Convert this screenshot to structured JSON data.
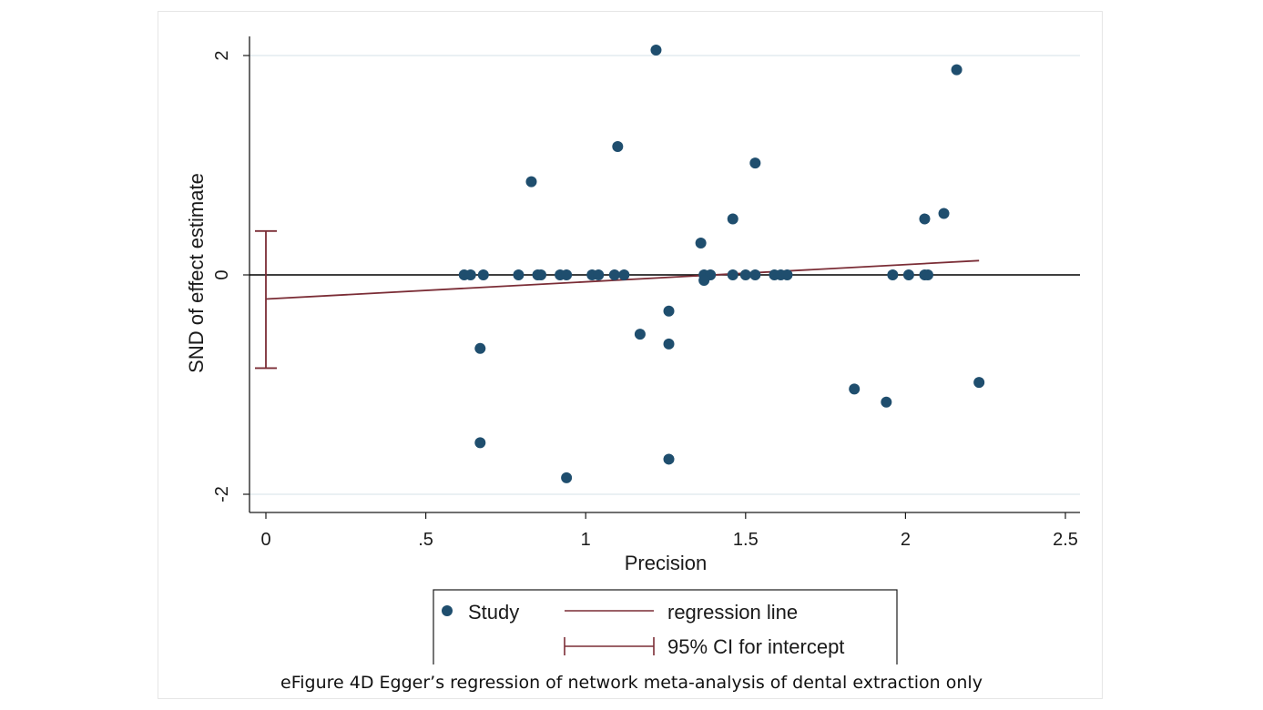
{
  "chart_data": {
    "type": "scatter",
    "xlabel": "Precision",
    "ylabel": "SND of effect estimate",
    "xlim": [
      -0.05,
      2.55
    ],
    "ylim": [
      -2.15,
      2.15
    ],
    "x_ticks": [
      0,
      0.5,
      1,
      1.5,
      2,
      2.5
    ],
    "x_tick_labels": [
      "0",
      ".5",
      "1",
      "1.5",
      "2",
      "2.5"
    ],
    "y_ticks": [
      -2,
      0,
      2
    ],
    "y_tick_labels": [
      "-2",
      "0",
      "2"
    ],
    "grid": "horizontal",
    "series": [
      {
        "name": "Study",
        "type": "scatter",
        "color": "#1f4e6e",
        "points": [
          {
            "x": 0.62,
            "y": 0
          },
          {
            "x": 0.64,
            "y": 0
          },
          {
            "x": 0.68,
            "y": 0
          },
          {
            "x": 0.79,
            "y": 0
          },
          {
            "x": 0.85,
            "y": 0
          },
          {
            "x": 0.86,
            "y": 0
          },
          {
            "x": 0.92,
            "y": 0
          },
          {
            "x": 0.94,
            "y": 0
          },
          {
            "x": 1.02,
            "y": 0
          },
          {
            "x": 1.04,
            "y": 0
          },
          {
            "x": 1.09,
            "y": 0
          },
          {
            "x": 1.12,
            "y": 0
          },
          {
            "x": 1.37,
            "y": 0
          },
          {
            "x": 1.39,
            "y": 0
          },
          {
            "x": 1.46,
            "y": 0
          },
          {
            "x": 1.5,
            "y": 0
          },
          {
            "x": 1.53,
            "y": 0
          },
          {
            "x": 1.59,
            "y": 0
          },
          {
            "x": 1.61,
            "y": 0
          },
          {
            "x": 1.63,
            "y": 0
          },
          {
            "x": 1.96,
            "y": 0
          },
          {
            "x": 2.01,
            "y": 0
          },
          {
            "x": 2.06,
            "y": 0
          },
          {
            "x": 2.07,
            "y": 0
          },
          {
            "x": 1.22,
            "y": 2.05
          },
          {
            "x": 2.16,
            "y": 1.87
          },
          {
            "x": 1.1,
            "y": 1.17
          },
          {
            "x": 1.53,
            "y": 1.02
          },
          {
            "x": 0.83,
            "y": 0.85
          },
          {
            "x": 2.12,
            "y": 0.56
          },
          {
            "x": 1.46,
            "y": 0.51
          },
          {
            "x": 2.06,
            "y": 0.51
          },
          {
            "x": 1.36,
            "y": 0.29
          },
          {
            "x": 1.37,
            "y": -0.05
          },
          {
            "x": 1.26,
            "y": -0.33
          },
          {
            "x": 1.17,
            "y": -0.54
          },
          {
            "x": 1.26,
            "y": -0.63
          },
          {
            "x": 0.67,
            "y": -0.67
          },
          {
            "x": 2.23,
            "y": -0.98
          },
          {
            "x": 1.84,
            "y": -1.04
          },
          {
            "x": 1.94,
            "y": -1.16
          },
          {
            "x": 0.67,
            "y": -1.53
          },
          {
            "x": 1.26,
            "y": -1.68
          },
          {
            "x": 0.94,
            "y": -1.85
          }
        ]
      },
      {
        "name": "regression line",
        "type": "line",
        "color": "#7b2d36",
        "x": [
          0,
          2.23
        ],
        "y": [
          -0.22,
          0.13
        ]
      },
      {
        "name": "95% CI for intercept",
        "type": "errorbar",
        "color": "#7b2d36",
        "x": 0,
        "low": -0.85,
        "high": 0.4
      }
    ],
    "legend": {
      "position": "bottom-center",
      "items": [
        "Study",
        "regression line",
        "95% CI for intercept"
      ]
    }
  },
  "caption": "eFigure 4D Egger’s regression of network meta-analysis of dental extraction only"
}
